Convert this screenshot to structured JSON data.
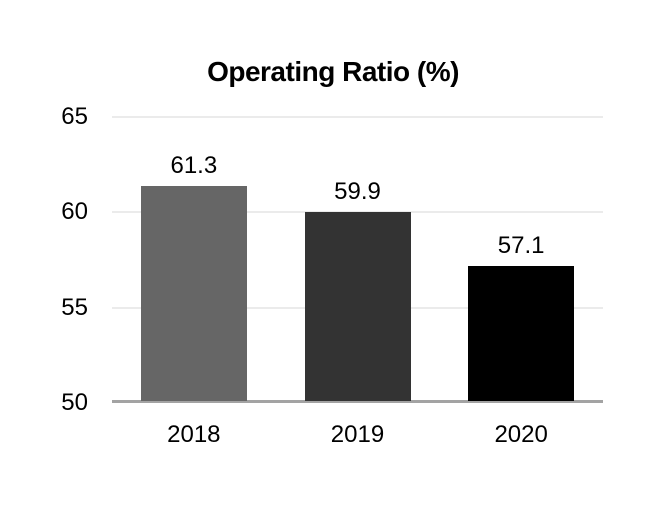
{
  "chart_data": {
    "type": "bar",
    "title": "Operating Ratio (%)",
    "categories": [
      "2018",
      "2019",
      "2020"
    ],
    "values": [
      61.3,
      59.9,
      57.1
    ],
    "data_labels": [
      "61.3",
      "59.9",
      "57.1"
    ],
    "bar_colors": [
      "#666666",
      "#333333",
      "#000000"
    ],
    "ylim": [
      50,
      65
    ],
    "yticks": [
      65,
      60,
      55,
      50
    ],
    "ytick_labels": [
      "65",
      "60",
      "55",
      "50"
    ],
    "xlabel": "",
    "ylabel": "",
    "legend": "none",
    "grid": "horizontal",
    "gridline_color": "#ebebeb",
    "baseline_color": "#a3a3a3",
    "text_color": "#000000",
    "background_color": "#ffffff"
  }
}
